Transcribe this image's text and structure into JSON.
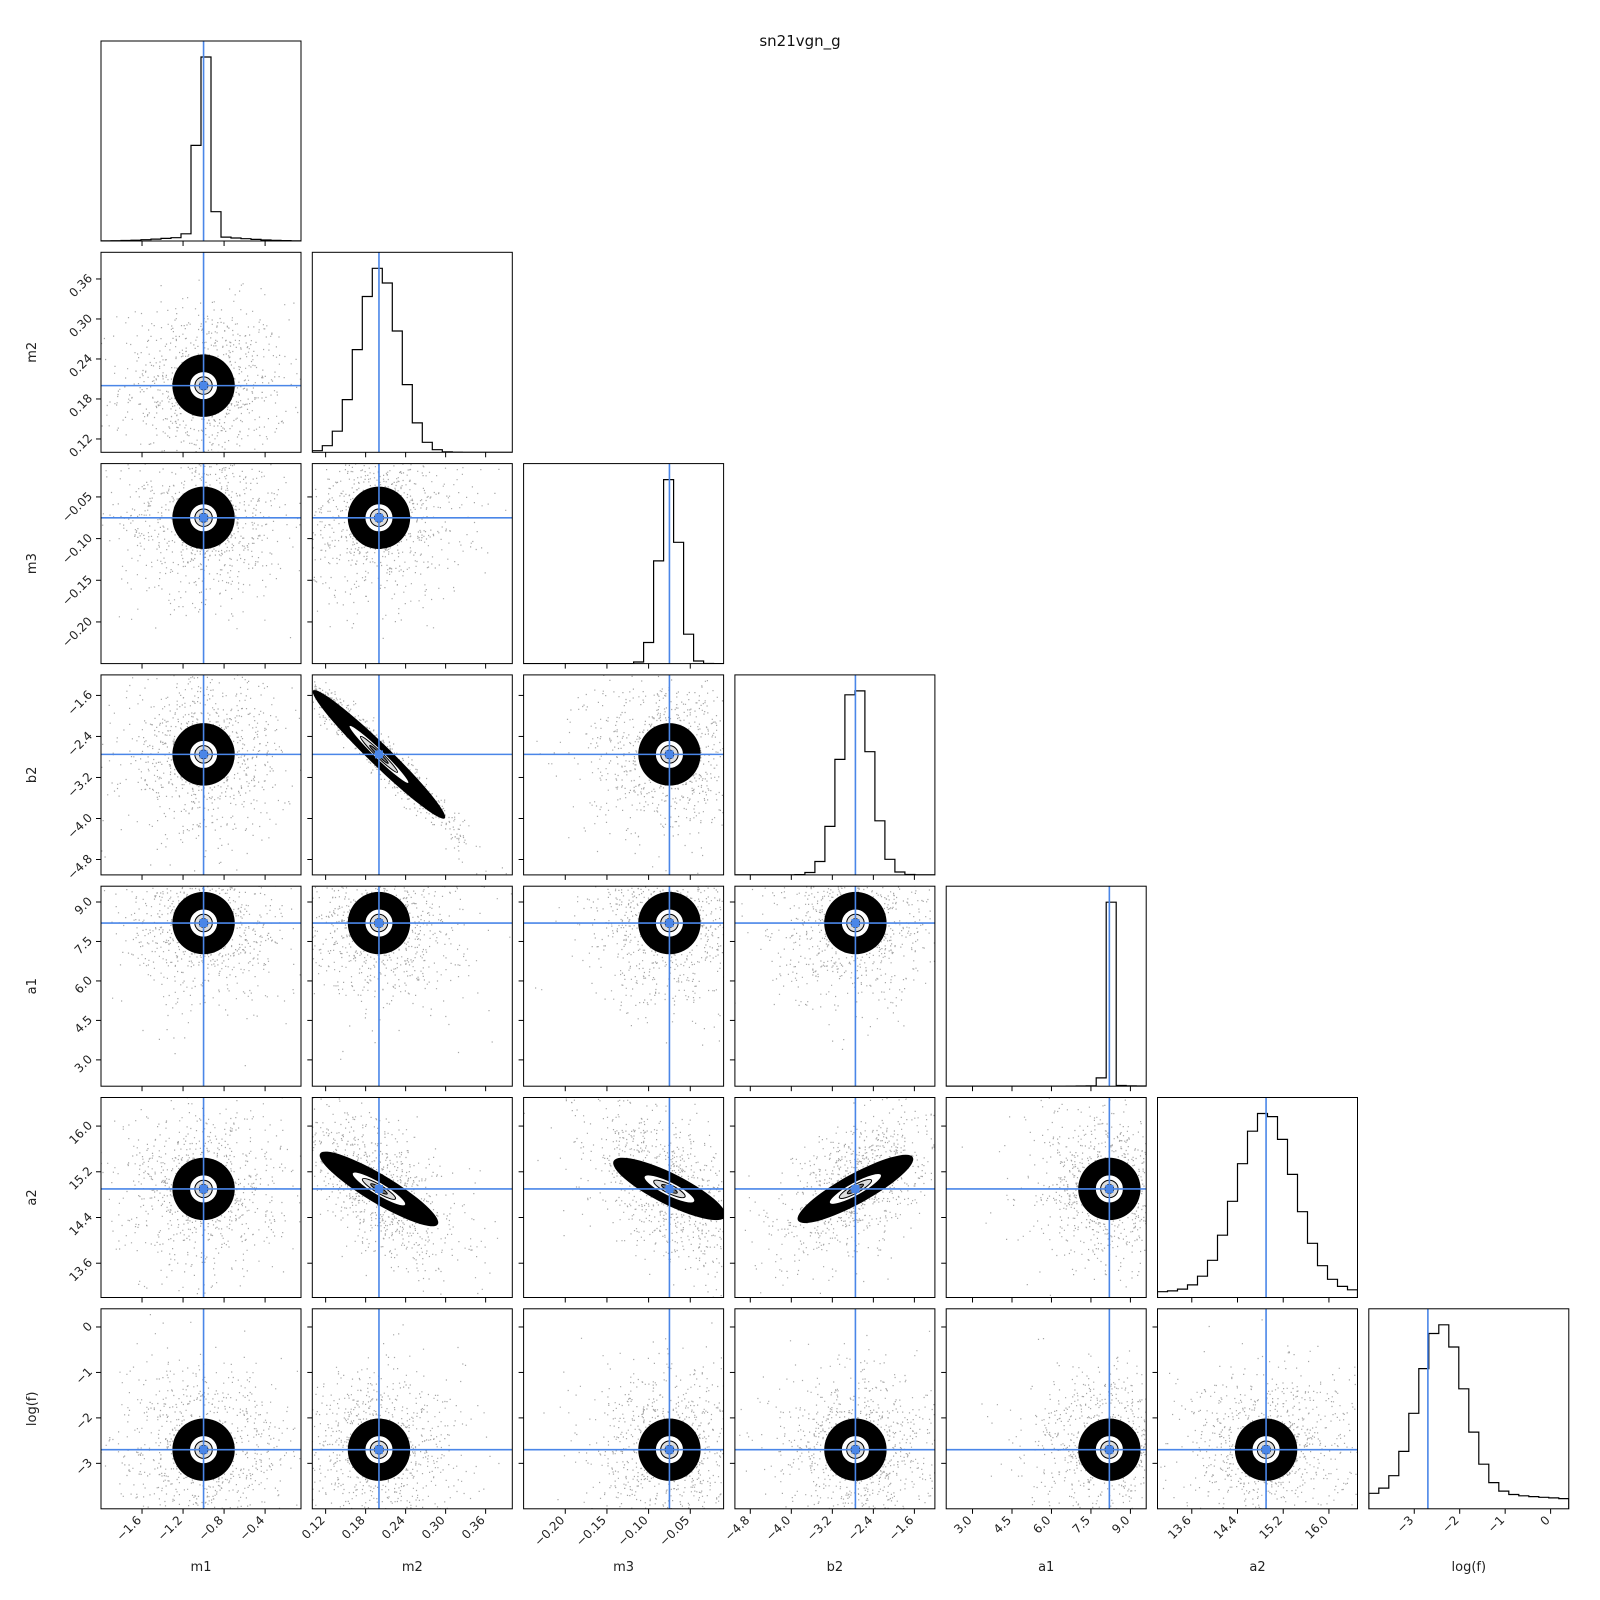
{
  "chart_data": {
    "type": "corner",
    "title": "sn21vgn_g",
    "truth_color": "#4a86e8",
    "parameters": [
      {
        "name": "m1",
        "label": "m1",
        "range": [
          -2.0,
          -0.05
        ],
        "ticks": [
          -1.6,
          -1.2,
          -0.8,
          -0.4
        ],
        "tick_labels": [
          "−1.6",
          "−1.2",
          "−0.8",
          "−0.4"
        ],
        "truth": -1.0,
        "width": 0.06,
        "skew": 0.0,
        "tail": 0.15,
        "peak_hint": -1.0
      },
      {
        "name": "m2",
        "label": "m2",
        "range": [
          0.1,
          0.4
        ],
        "ticks": [
          0.12,
          0.18,
          0.24,
          0.3,
          0.36
        ],
        "tick_labels": [
          "0.12",
          "0.18",
          "0.24",
          "0.30",
          "0.36"
        ],
        "truth": 0.2,
        "width": 0.03,
        "skew": 0.0,
        "tail": 0.0,
        "peak_hint": 0.2
      },
      {
        "name": "m3",
        "label": "m3",
        "range": [
          -0.25,
          -0.01
        ],
        "ticks": [
          -0.2,
          -0.15,
          -0.1,
          -0.05
        ],
        "tick_labels": [
          "−0.20",
          "−0.15",
          "−0.10",
          "−0.05"
        ],
        "truth": -0.075,
        "width": 0.012,
        "skew": 0.0,
        "tail": 0.0,
        "peak_hint": -0.075
      },
      {
        "name": "b2",
        "label": "b2",
        "range": [
          -5.1,
          -1.2
        ],
        "ticks": [
          -4.8,
          -4.0,
          -3.2,
          -2.4,
          -1.6
        ],
        "tick_labels": [
          "−4.8",
          "−4.0",
          "−3.2",
          "−2.4",
          "−1.6"
        ],
        "truth": -2.75,
        "width": 0.3,
        "skew": 0.0,
        "tail": 0.0,
        "peak_hint": -2.75
      },
      {
        "name": "a1",
        "label": "a1",
        "range": [
          2.0,
          9.6
        ],
        "ticks": [
          3.0,
          4.5,
          6.0,
          7.5,
          9.0
        ],
        "tick_labels": [
          "3.0",
          "4.5",
          "6.0",
          "7.5",
          "9.0"
        ],
        "truth": 8.2,
        "width": 0.12,
        "skew": 0.0,
        "tail": 0.02,
        "peak_hint": 8.2
      },
      {
        "name": "a2",
        "label": "a2",
        "range": [
          13.0,
          16.5
        ],
        "ticks": [
          13.6,
          14.4,
          15.2,
          16.0
        ],
        "tick_labels": [
          "13.6",
          "14.4",
          "15.2",
          "16.0"
        ],
        "truth": 14.9,
        "width": 0.5,
        "skew": 0.0,
        "tail": 0.25,
        "peak_hint": 14.9
      },
      {
        "name": "logf",
        "label": "log(f)",
        "range": [
          -4.0,
          0.4
        ],
        "ticks": [
          -3,
          -2,
          -1,
          0
        ],
        "tick_labels": [
          "−3",
          "−2",
          "−1",
          "0"
        ],
        "truth": -2.7,
        "width": 0.5,
        "skew": 0.0,
        "tail": 0.6,
        "peak_hint": -2.4
      }
    ],
    "correlations": [
      {
        "i": 3,
        "j": 1,
        "rho": -0.97
      },
      {
        "i": 5,
        "j": 1,
        "rho": -0.6
      },
      {
        "i": 5,
        "j": 2,
        "rho": -0.5
      },
      {
        "i": 5,
        "j": 3,
        "rho": 0.55
      }
    ],
    "grid": false
  }
}
